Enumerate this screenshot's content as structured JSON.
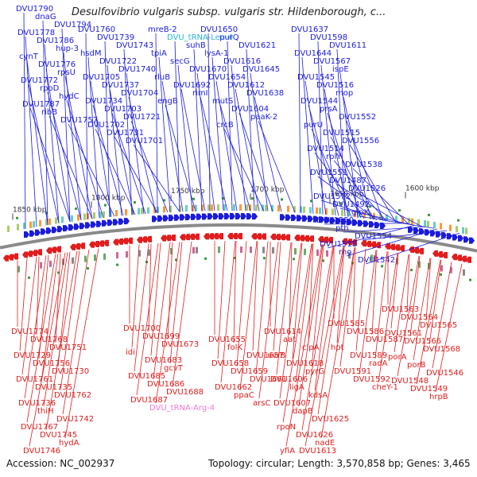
{
  "title": "Desulfovibrio vulgaris subsp. vulgaris str. Hildenborough, c...",
  "footer": {
    "accession": "Accession: NC_002937",
    "topology": "Topology: circular; Length: 3,570,858 bp; Genes: 3,465"
  },
  "colors": {
    "forward_strand": "#1b1bdc",
    "reverse_strand": "#e11d1d",
    "trna_forward": "#29b6d9",
    "trna_reverse": "#ee7bd3",
    "backbone": "#8a8a8a",
    "marker": "#3a9a3a"
  },
  "scale_labels": [
    "1850 kbp",
    "1800 kbp",
    "1750 kbp",
    "1700 kbp",
    "1650 kbp",
    "1600 kbp"
  ],
  "forward_genes": [
    "DVU1790",
    "dnaG",
    "DVU1794",
    "DVU1778",
    "DVU1786",
    "hup-3",
    "cynT",
    "DVU1776",
    "rpsU",
    "DVU1772",
    "rpoD",
    "hydC",
    "DVU1787",
    "ribB",
    "DVU1757",
    "DVU1760",
    "DVU1739",
    "DVU1743",
    "hsdM",
    "DVU1722",
    "DVU1740",
    "DVU1705",
    "DVU1737",
    "DVU1704",
    "DVU1734",
    "DVU1703",
    "DVU1721",
    "DVU1702",
    "DVU1731",
    "DVU1701",
    "mreB-2",
    "DVU_tRNA-Leu-4",
    "suhB",
    "tpiA",
    "secG",
    "DVU1670",
    "rluB",
    "DVU1692",
    "rimI",
    "engB",
    "DVU1650",
    "purQ",
    "DVU1621",
    "lysA-1",
    "DVU1616",
    "DVU1645",
    "DVU1654",
    "DVU1612",
    "DVU1638",
    "mutS",
    "DVU1604",
    "paaK-2",
    "crcB",
    "DVU1637",
    "DVU1598",
    "DVU1611",
    "DVU1644",
    "DVU1567",
    "ispE",
    "DVU1545",
    "DVU1516",
    "mop",
    "DVU1544",
    "prsA",
    "DVU1552",
    "purU",
    "DVU1515",
    "DVU1556",
    "DVU1514",
    "rplY",
    "DVU1538",
    "DVU1551",
    "DVU1487",
    "DVU1526",
    "DVU1572",
    "DVU1492",
    "glpX",
    "DVU1550",
    "pth",
    "DVU1554",
    "DVU1518",
    "rho",
    "DVU1542",
    "DVU1558",
    "DVU1584"
  ],
  "reverse_genes": [
    "DVU1774",
    "DVU1768",
    "DVU1751",
    "DVU1729",
    "DVU1756",
    "DVU1730",
    "DVU1761",
    "DVU1735",
    "DVU1762",
    "DVU1736",
    "thiH",
    "DVU1742",
    "DVU1767",
    "DVU1745",
    "hydA",
    "DVU1746",
    "DVU1700",
    "DVU1699",
    "DVU1673",
    "idi",
    "DVU1683",
    "gcvT",
    "DVU1685",
    "DVU1686",
    "DVU1688",
    "DVU1687",
    "DVU_tRNA-Arg-4",
    "DVU1655",
    "folK",
    "DVU1657",
    "DVU1658",
    "DVU1659",
    "DVU1661",
    "DVU1662",
    "ppaC",
    "arsC",
    "DVU1614",
    "aat",
    "clpA",
    "uvrB",
    "DVU1618",
    "pyrG",
    "DVU1606",
    "ligA",
    "kdsA",
    "DVU1607",
    "dapB",
    "DVU1625",
    "rpoN",
    "DVU1626",
    "nadE",
    "yfiA",
    "DVU1613",
    "DVU1585",
    "DVU1586",
    "DVU1587",
    "hpt",
    "DVU1589",
    "radA",
    "DVU1591",
    "DVU1592",
    "cheY-1",
    "DVU1563",
    "DVU1564",
    "DVU1565",
    "DVU1561",
    "DVU1566",
    "DVU1568",
    "porA",
    "porB",
    "DVU1546",
    "DVU1548",
    "DVU1549",
    "hrpB"
  ]
}
